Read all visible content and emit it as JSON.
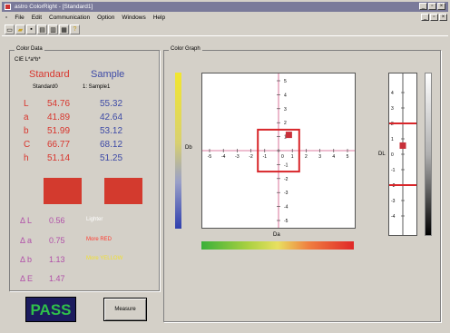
{
  "window": {
    "title": "astro ColorRight - [Standard1]"
  },
  "menu": [
    "File",
    "Edit",
    "Communication",
    "Option",
    "Windows",
    "Help"
  ],
  "toolbar_icons": [
    "new-file-icon",
    "open-folder-icon",
    "save-icon",
    "copy-icon",
    "export-icon",
    "print-icon",
    "help-icon"
  ],
  "color_data": {
    "legend": "Color Data",
    "space": "CIE L*a*b*",
    "standard_header": "Standard",
    "sample_header": "Sample",
    "standard_name": "Standard0",
    "sample_name": "1: Sample1",
    "rows": [
      {
        "label": "L",
        "standard": "54.76",
        "sample": "55.32"
      },
      {
        "label": "a",
        "standard": "41.89",
        "sample": "42.64"
      },
      {
        "label": "b",
        "standard": "51.99",
        "sample": "53.12"
      },
      {
        "label": "C",
        "standard": "66.77",
        "sample": "68.12"
      },
      {
        "label": "h",
        "standard": "51.14",
        "sample": "51.25"
      }
    ],
    "standard_color": "#d33a2e",
    "sample_color": "#d33a2e",
    "deltas": [
      {
        "label": "Δ L",
        "value": "0.56",
        "desc": "Lighter",
        "desc_color": "#ffffff"
      },
      {
        "label": "Δ a",
        "value": "0.75",
        "desc": "More RED",
        "desc_color": "#ff3a2e"
      },
      {
        "label": "Δ b",
        "value": "1.13",
        "desc": "More YELLOW",
        "desc_color": "#f0e030"
      },
      {
        "label": "Δ E",
        "value": "1.47",
        "desc": "",
        "desc_color": "#ffffff"
      }
    ]
  },
  "status": {
    "result": "PASS"
  },
  "buttons": {
    "measure": "Measure"
  },
  "color_graph": {
    "legend": "Color Graph",
    "x_label": "Da",
    "y_label": "Db",
    "dl_label": "DL",
    "ticks": [
      "-5",
      "-4",
      "-3",
      "-2",
      "-1",
      "0",
      "1",
      "2",
      "3",
      "4",
      "5"
    ],
    "dl_ticks": [
      "4",
      "3",
      "2",
      "1",
      "0",
      "-1",
      "-2",
      "-3",
      "-4"
    ],
    "ab_range": [
      -5,
      5
    ],
    "dl_range": [
      -5,
      5
    ],
    "tolerance_ab": 1.5,
    "tolerance_dl": 2,
    "sample_point": {
      "da": 0.75,
      "db": 1.13
    },
    "sample_dl": 0.56
  }
}
